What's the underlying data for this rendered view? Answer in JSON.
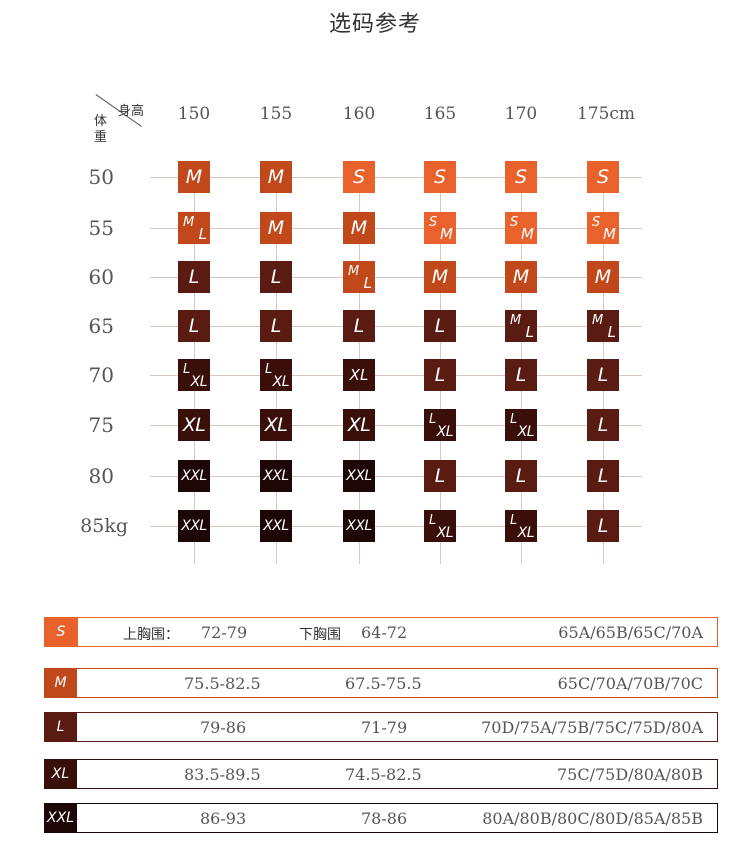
{
  "title": "选码参考",
  "corner": {
    "height_label": "身高",
    "weight_label": "体重"
  },
  "columns": [
    "150",
    "155",
    "160",
    "165",
    "170",
    "175cm"
  ],
  "rows": [
    "50",
    "55",
    "60",
    "65",
    "70",
    "75",
    "80",
    "85kg"
  ],
  "colors": {
    "S": "#e9622b",
    "M": "#c0481b",
    "L": "#5a1b12",
    "XL": "#3a0f0a",
    "XXL": "#1c0706",
    "grid": "#d9c7c3"
  },
  "cells": [
    [
      [
        "M"
      ],
      [
        "M"
      ],
      [
        "S"
      ],
      [
        "S"
      ],
      [
        "S"
      ],
      [
        "S"
      ]
    ],
    [
      [
        "M",
        "L"
      ],
      [
        "M"
      ],
      [
        "M"
      ],
      [
        "S",
        "M"
      ],
      [
        "S",
        "M"
      ],
      [
        "S",
        "M"
      ]
    ],
    [
      [
        "L"
      ],
      [
        "L"
      ],
      [
        "M",
        "L"
      ],
      [
        "M"
      ],
      [
        "M"
      ],
      [
        "M"
      ]
    ],
    [
      [
        "L"
      ],
      [
        "L"
      ],
      [
        "L"
      ],
      [
        "L"
      ],
      [
        "M",
        "L"
      ],
      [
        "M",
        "L"
      ]
    ],
    [
      [
        "L",
        "XL"
      ],
      [
        "L",
        "XL"
      ],
      [
        "XL"
      ],
      [
        "L"
      ],
      [
        "L"
      ],
      [
        "L"
      ]
    ],
    [
      [
        "XL"
      ],
      [
        "XL"
      ],
      [
        "XL"
      ],
      [
        "L",
        "XL"
      ],
      [
        "L",
        "XL"
      ],
      [
        "L"
      ]
    ],
    [
      [
        "XXL"
      ],
      [
        "XXL"
      ],
      [
        "XXL"
      ],
      [
        "L"
      ],
      [
        "L"
      ],
      [
        "L"
      ]
    ],
    [
      [
        "XXL"
      ],
      [
        "XXL"
      ],
      [
        "XXL"
      ],
      [
        "L",
        "XL"
      ],
      [
        "L",
        "XL"
      ],
      [
        "L"
      ]
    ]
  ],
  "cell_colors": [
    [
      "M",
      "M",
      "S",
      "S",
      "S",
      "S"
    ],
    [
      "M",
      "M",
      "M",
      "S",
      "S",
      "S"
    ],
    [
      "L",
      "L",
      "M",
      "M",
      "M",
      "M"
    ],
    [
      "L",
      "L",
      "L",
      "L",
      "L",
      "L"
    ],
    [
      "XL",
      "XL",
      "XL",
      "L",
      "L",
      "L"
    ],
    [
      "XL",
      "XL",
      "XL",
      "XL",
      "XL",
      "L"
    ],
    [
      "XXL",
      "XXL",
      "XXL",
      "L",
      "L",
      "L"
    ],
    [
      "XXL",
      "XXL",
      "XXL",
      "XL",
      "XL",
      "L"
    ]
  ],
  "size_table": {
    "upper_label": "上胸围：",
    "lower_label": "下胸围",
    "rows": [
      {
        "size": "S",
        "upper": "72-79",
        "lower": "64-72",
        "cups": "65A/65B/65C/70A"
      },
      {
        "size": "M",
        "upper": "75.5-82.5",
        "lower": "67.5-75.5",
        "cups": "65C/70A/70B/70C"
      },
      {
        "size": "L",
        "upper": "79-86",
        "lower": "71-79",
        "cups": "70D/75A/75B/75C/75D/80A"
      },
      {
        "size": "XL",
        "upper": "83.5-89.5",
        "lower": "74.5-82.5",
        "cups": "75C/75D/80A/80B"
      },
      {
        "size": "XXL",
        "upper": "86-93",
        "lower": "78-86",
        "cups": "80A/80B/80C/80D/85A/85B"
      }
    ]
  }
}
